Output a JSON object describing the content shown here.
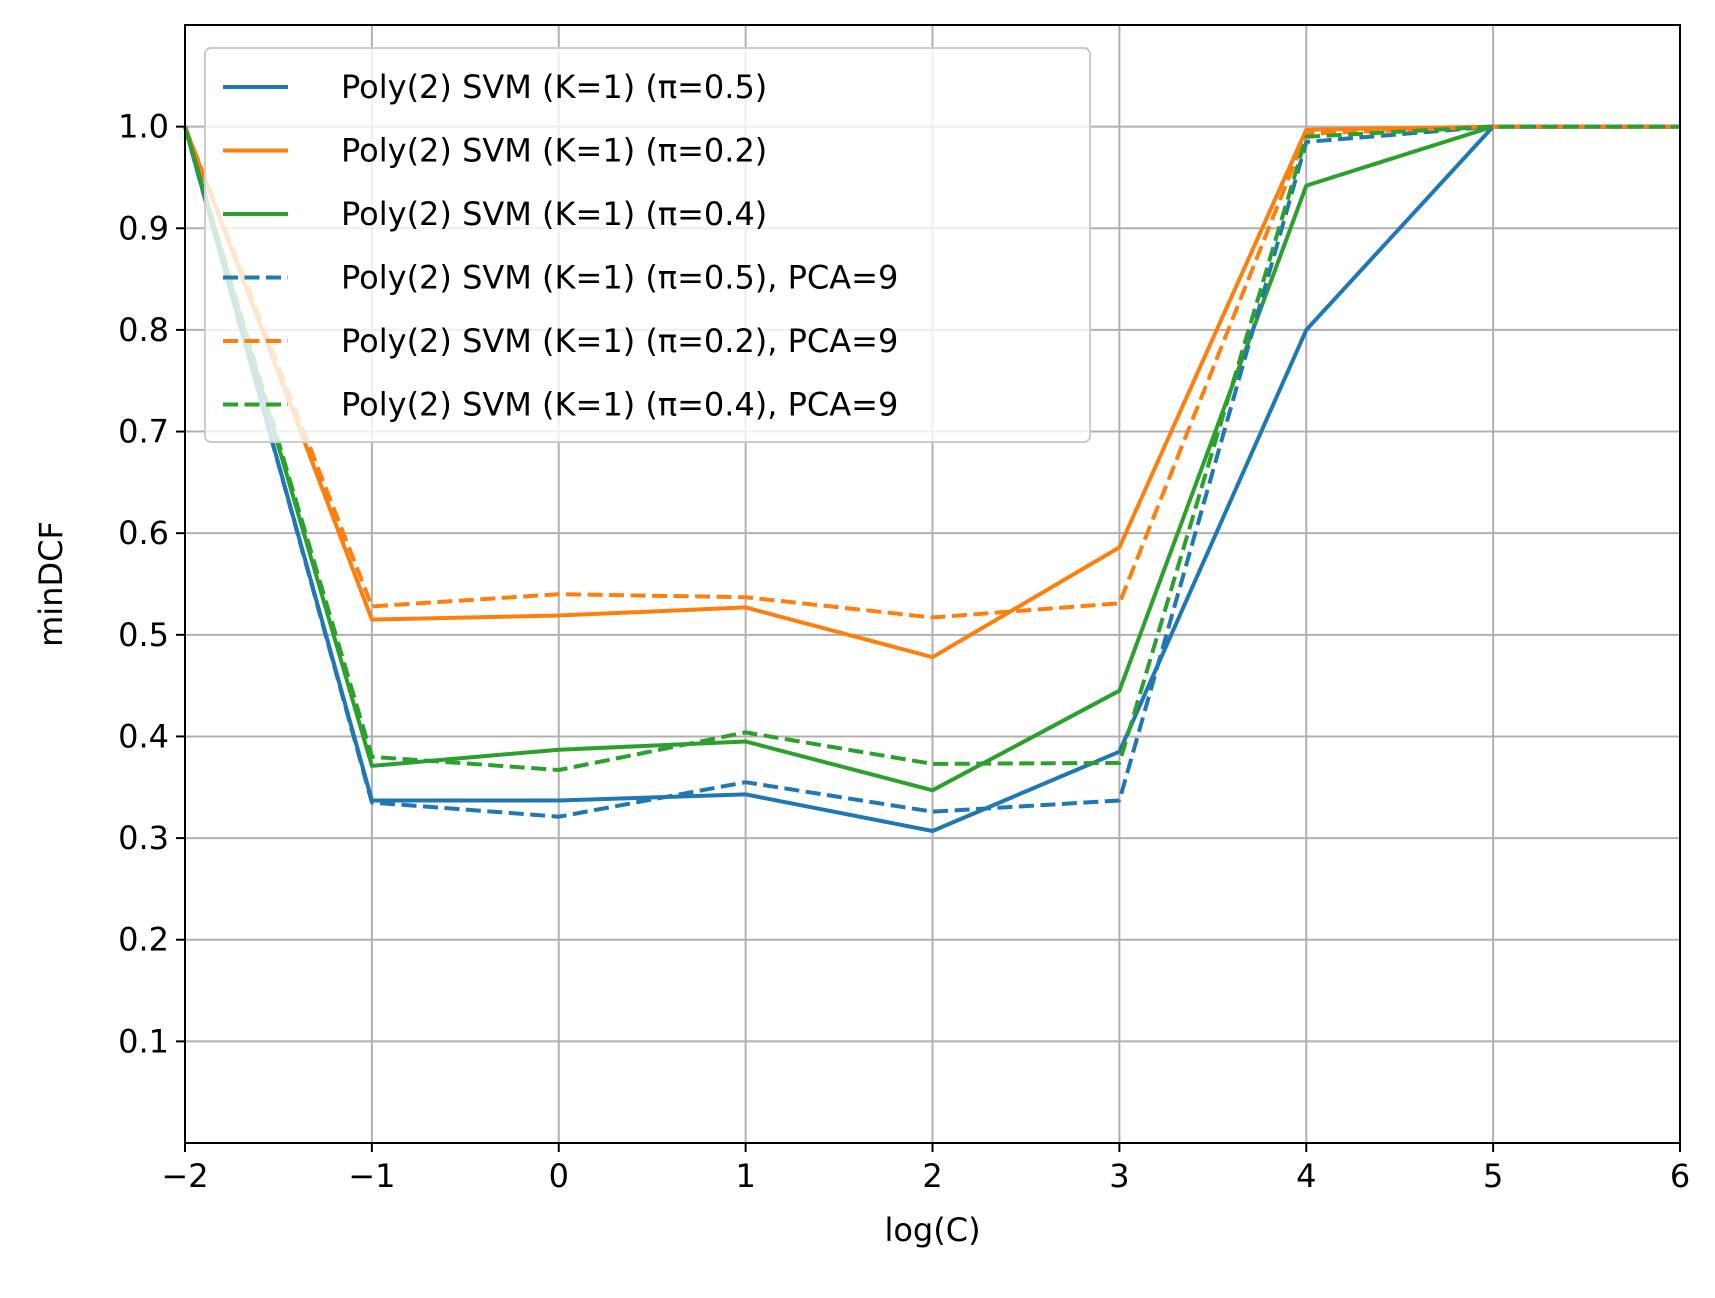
{
  "chart_data": {
    "type": "line",
    "xlabel": "log(C)",
    "ylabel": "minDCF",
    "xlim": [
      -2,
      6
    ],
    "ylim": [
      0,
      1.1
    ],
    "x_ticks": [
      -2,
      -1,
      0,
      1,
      2,
      3,
      4,
      5,
      6
    ],
    "x_tick_labels": [
      "−2",
      "−1",
      "0",
      "1",
      "2",
      "3",
      "4",
      "5",
      "6"
    ],
    "y_ticks": [
      0.1,
      0.2,
      0.3,
      0.4,
      0.5,
      0.6,
      0.7,
      0.8,
      0.9,
      1.0
    ],
    "y_tick_labels": [
      "0.1",
      "0.2",
      "0.3",
      "0.4",
      "0.5",
      "0.6",
      "0.7",
      "0.8",
      "0.9",
      "1.0"
    ],
    "grid": true,
    "legend_position": "top-left",
    "x": [
      -2,
      -1,
      0,
      1,
      2,
      3,
      4,
      5,
      6
    ],
    "series": [
      {
        "name": "Poly(2) SVM (K=1) (π=0.5)",
        "color": "#1f77b4",
        "dash": "solid",
        "values": [
          1.0,
          0.337,
          0.337,
          0.343,
          0.307,
          0.385,
          0.8,
          1.0,
          1.0
        ]
      },
      {
        "name": "Poly(2) SVM (K=1) (π=0.2)",
        "color": "#ff7f0e",
        "dash": "solid",
        "values": [
          1.0,
          0.515,
          0.519,
          0.527,
          0.478,
          0.586,
          0.997,
          1.0,
          1.0
        ]
      },
      {
        "name": "Poly(2) SVM (K=1) (π=0.4)",
        "color": "#2ca02c",
        "dash": "solid",
        "values": [
          1.0,
          0.371,
          0.387,
          0.395,
          0.347,
          0.445,
          0.942,
          1.0,
          1.0
        ]
      },
      {
        "name": "Poly(2) SVM (K=1) (π=0.5), PCA=9",
        "color": "#1f77b4",
        "dash": "dashed",
        "values": [
          1.0,
          0.335,
          0.321,
          0.355,
          0.326,
          0.337,
          0.985,
          1.0,
          1.0
        ]
      },
      {
        "name": "Poly(2) SVM (K=1) (π=0.2), PCA=9",
        "color": "#ff7f0e",
        "dash": "dashed",
        "values": [
          1.0,
          0.528,
          0.54,
          0.537,
          0.517,
          0.531,
          0.993,
          1.0,
          1.0
        ]
      },
      {
        "name": "Poly(2) SVM (K=1) (π=0.4), PCA=9",
        "color": "#2ca02c",
        "dash": "dashed",
        "values": [
          1.0,
          0.38,
          0.367,
          0.404,
          0.373,
          0.374,
          0.99,
          1.0,
          1.0
        ]
      }
    ]
  }
}
